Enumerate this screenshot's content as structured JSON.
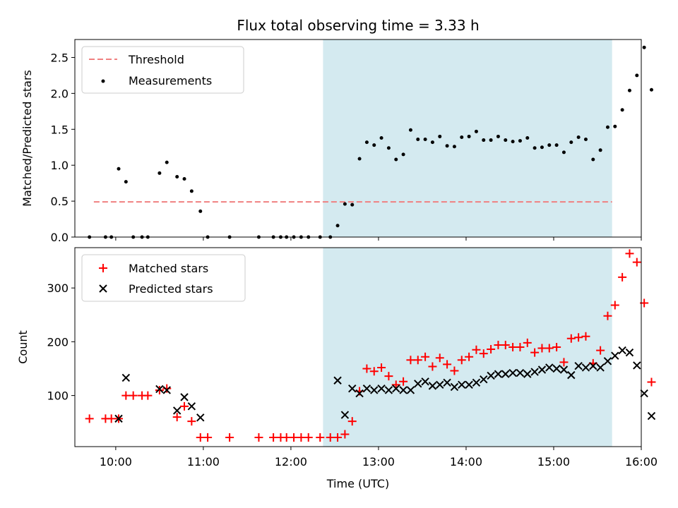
{
  "chart_data": [
    {
      "type": "scatter",
      "title": "Flux total observing time = 3.33 h",
      "xlabel": "",
      "ylabel": "Matched/Predicted stars",
      "ylim": [
        0,
        2.75
      ],
      "yticks": [
        0.0,
        0.5,
        1.0,
        1.5,
        2.0,
        2.5
      ],
      "ytick_labels": [
        "0.0",
        "0.5",
        "1.0",
        "1.5",
        "2.0",
        "2.5"
      ],
      "xlim": [
        "09:32",
        "16:00"
      ],
      "shaded_region": {
        "from": "12:22",
        "to": "15:40",
        "color": "#d4eaf0"
      },
      "legend_position": "top-left",
      "threshold": {
        "name": "Threshold",
        "value": 0.49,
        "from": "09:45",
        "to": "15:40",
        "color": "#f08080"
      },
      "series": [
        {
          "name": "Measurements",
          "color": "#000000",
          "points": [
            [
              "09:42",
              0
            ],
            [
              "09:53",
              0
            ],
            [
              "09:57",
              0
            ],
            [
              "10:02",
              0.95
            ],
            [
              "10:07",
              0.77
            ],
            [
              "10:12",
              0
            ],
            [
              "10:18",
              0
            ],
            [
              "10:22",
              0
            ],
            [
              "10:30",
              0.89
            ],
            [
              "10:35",
              1.04
            ],
            [
              "10:42",
              0.84
            ],
            [
              "10:47",
              0.81
            ],
            [
              "10:52",
              0.64
            ],
            [
              "10:58",
              0.36
            ],
            [
              "11:03",
              0
            ],
            [
              "11:18",
              0
            ],
            [
              "11:38",
              0
            ],
            [
              "11:48",
              0
            ],
            [
              "11:53",
              0
            ],
            [
              "11:57",
              0
            ],
            [
              "12:02",
              0
            ],
            [
              "12:07",
              0
            ],
            [
              "12:12",
              0
            ],
            [
              "12:20",
              0
            ],
            [
              "12:27",
              0
            ],
            [
              "12:32",
              0.16
            ],
            [
              "12:37",
              0.46
            ],
            [
              "12:42",
              0.45
            ],
            [
              "12:47",
              1.09
            ],
            [
              "12:52",
              1.32
            ],
            [
              "12:57",
              1.28
            ],
            [
              "13:02",
              1.38
            ],
            [
              "13:07",
              1.24
            ],
            [
              "13:12",
              1.08
            ],
            [
              "13:17",
              1.15
            ],
            [
              "13:22",
              1.49
            ],
            [
              "13:27",
              1.36
            ],
            [
              "13:32",
              1.36
            ],
            [
              "13:37",
              1.32
            ],
            [
              "13:42",
              1.4
            ],
            [
              "13:47",
              1.27
            ],
            [
              "13:52",
              1.26
            ],
            [
              "13:57",
              1.39
            ],
            [
              "14:02",
              1.4
            ],
            [
              "14:07",
              1.47
            ],
            [
              "14:12",
              1.35
            ],
            [
              "14:17",
              1.35
            ],
            [
              "14:22",
              1.4
            ],
            [
              "14:27",
              1.35
            ],
            [
              "14:32",
              1.33
            ],
            [
              "14:37",
              1.34
            ],
            [
              "14:42",
              1.38
            ],
            [
              "14:47",
              1.24
            ],
            [
              "14:52",
              1.25
            ],
            [
              "14:57",
              1.28
            ],
            [
              "15:02",
              1.28
            ],
            [
              "15:07",
              1.18
            ],
            [
              "15:12",
              1.32
            ],
            [
              "15:17",
              1.39
            ],
            [
              "15:22",
              1.36
            ],
            [
              "15:27",
              1.08
            ],
            [
              "15:32",
              1.21
            ],
            [
              "15:37",
              1.53
            ],
            [
              "15:42",
              1.54
            ],
            [
              "15:47",
              1.77
            ],
            [
              "15:52",
              2.04
            ],
            [
              "15:57",
              2.25
            ],
            [
              "16:02",
              2.64
            ],
            [
              "16:07",
              2.05
            ]
          ]
        }
      ]
    },
    {
      "type": "scatter",
      "title": "",
      "xlabel": "Time (UTC)",
      "ylabel": "Count",
      "ylim": [
        5,
        375
      ],
      "yticks": [
        100,
        200,
        300
      ],
      "ytick_labels": [
        "100",
        "200",
        "300"
      ],
      "xlim": [
        "09:32",
        "16:00"
      ],
      "xticks": [
        "10:00",
        "11:00",
        "12:00",
        "13:00",
        "14:00",
        "15:00",
        "16:00"
      ],
      "shaded_region": {
        "from": "12:22",
        "to": "15:40",
        "color": "#d4eaf0"
      },
      "legend_position": "top-left",
      "series": [
        {
          "name": "Matched stars",
          "marker": "plus",
          "color": "#ff0000",
          "points": [
            [
              "09:42",
              57
            ],
            [
              "09:53",
              57
            ],
            [
              "09:57",
              57
            ],
            [
              "10:02",
              57
            ],
            [
              "10:07",
              100
            ],
            [
              "10:12",
              100
            ],
            [
              "10:18",
              100
            ],
            [
              "10:22",
              100
            ],
            [
              "10:30",
              110
            ],
            [
              "10:35",
              113
            ],
            [
              "10:42",
              60
            ],
            [
              "10:47",
              80
            ],
            [
              "10:52",
              52
            ],
            [
              "10:58",
              22
            ],
            [
              "11:03",
              22
            ],
            [
              "11:18",
              22
            ],
            [
              "11:38",
              22
            ],
            [
              "11:48",
              22
            ],
            [
              "11:53",
              22
            ],
            [
              "11:57",
              22
            ],
            [
              "12:02",
              22
            ],
            [
              "12:07",
              22
            ],
            [
              "12:12",
              22
            ],
            [
              "12:20",
              22
            ],
            [
              "12:27",
              22
            ],
            [
              "12:32",
              22
            ],
            [
              "12:37",
              28
            ],
            [
              "12:42",
              52
            ],
            [
              "12:47",
              108
            ],
            [
              "12:52",
              150
            ],
            [
              "12:57",
              145
            ],
            [
              "13:02",
              152
            ],
            [
              "13:07",
              136
            ],
            [
              "13:12",
              120
            ],
            [
              "13:17",
              126
            ],
            [
              "13:22",
              166
            ],
            [
              "13:27",
              166
            ],
            [
              "13:32",
              172
            ],
            [
              "13:37",
              154
            ],
            [
              "13:42",
              170
            ],
            [
              "13:47",
              158
            ],
            [
              "13:52",
              146
            ],
            [
              "13:57",
              166
            ],
            [
              "14:02",
              172
            ],
            [
              "14:07",
              185
            ],
            [
              "14:12",
              178
            ],
            [
              "14:17",
              186
            ],
            [
              "14:22",
              194
            ],
            [
              "14:27",
              194
            ],
            [
              "14:32",
              190
            ],
            [
              "14:37",
              190
            ],
            [
              "14:42",
              198
            ],
            [
              "14:47",
              180
            ],
            [
              "14:52",
              188
            ],
            [
              "14:57",
              188
            ],
            [
              "15:02",
              190
            ],
            [
              "15:07",
              162
            ],
            [
              "15:12",
              206
            ],
            [
              "15:17",
              208
            ],
            [
              "15:22",
              210
            ],
            [
              "15:27",
              160
            ],
            [
              "15:32",
              184
            ],
            [
              "15:37",
              248
            ],
            [
              "15:42",
              268
            ],
            [
              "15:47",
              320
            ],
            [
              "15:52",
              364
            ],
            [
              "15:57",
              348
            ],
            [
              "16:02",
              272
            ],
            [
              "16:07",
              125
            ]
          ]
        },
        {
          "name": "Predicted stars",
          "marker": "x",
          "color": "#000000",
          "points": [
            [
              "10:02",
              57
            ],
            [
              "10:07",
              133
            ],
            [
              "10:30",
              112
            ],
            [
              "10:35",
              110
            ],
            [
              "10:42",
              72
            ],
            [
              "10:47",
              97
            ],
            [
              "10:52",
              80
            ],
            [
              "10:58",
              59
            ],
            [
              "12:32",
              128
            ],
            [
              "12:37",
              64
            ],
            [
              "12:42",
              113
            ],
            [
              "12:47",
              104
            ],
            [
              "12:52",
              113
            ],
            [
              "12:57",
              110
            ],
            [
              "13:02",
              113
            ],
            [
              "13:07",
              110
            ],
            [
              "13:12",
              113
            ],
            [
              "13:17",
              110
            ],
            [
              "13:22",
              110
            ],
            [
              "13:27",
              122
            ],
            [
              "13:32",
              126
            ],
            [
              "13:37",
              118
            ],
            [
              "13:42",
              120
            ],
            [
              "13:47",
              124
            ],
            [
              "13:52",
              116
            ],
            [
              "13:57",
              120
            ],
            [
              "14:02",
              120
            ],
            [
              "14:07",
              124
            ],
            [
              "14:12",
              130
            ],
            [
              "14:17",
              137
            ],
            [
              "14:22",
              140
            ],
            [
              "14:27",
              140
            ],
            [
              "14:32",
              142
            ],
            [
              "14:37",
              142
            ],
            [
              "14:42",
              140
            ],
            [
              "14:47",
              144
            ],
            [
              "14:52",
              148
            ],
            [
              "14:57",
              152
            ],
            [
              "15:02",
              150
            ],
            [
              "15:07",
              148
            ],
            [
              "15:12",
              138
            ],
            [
              "15:17",
              155
            ],
            [
              "15:22",
              152
            ],
            [
              "15:27",
              155
            ],
            [
              "15:32",
              152
            ],
            [
              "15:37",
              164
            ],
            [
              "15:42",
              174
            ],
            [
              "15:47",
              184
            ],
            [
              "15:52",
              180
            ],
            [
              "15:57",
              156
            ],
            [
              "16:02",
              104
            ],
            [
              "16:07",
              62
            ]
          ]
        }
      ]
    }
  ]
}
